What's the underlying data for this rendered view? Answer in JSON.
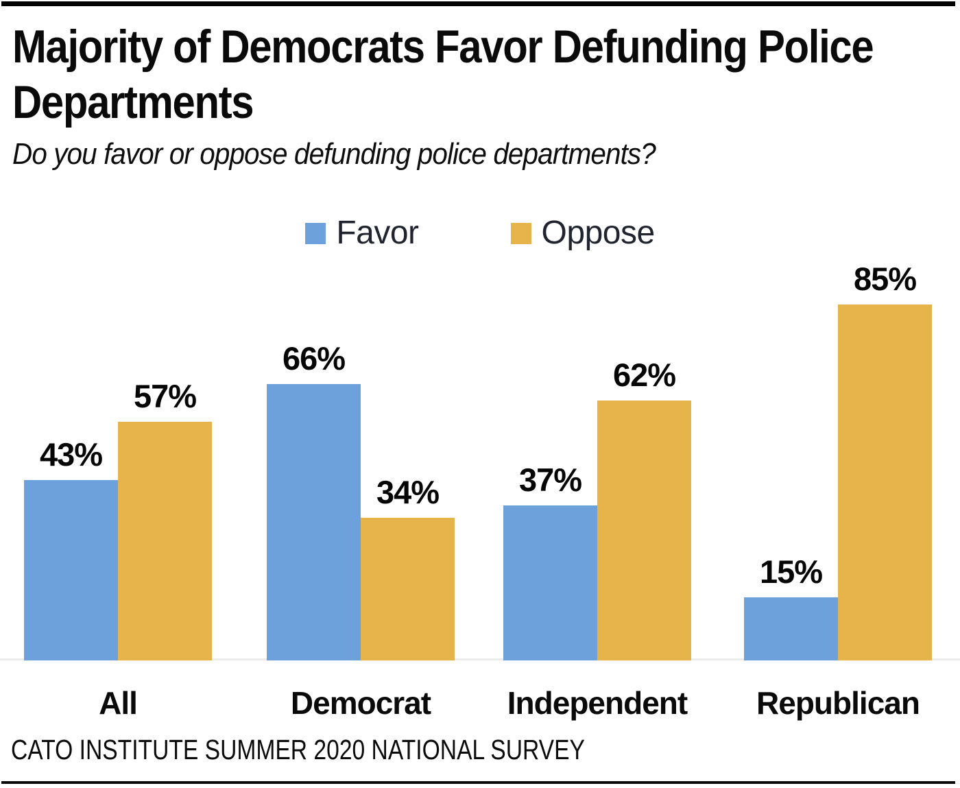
{
  "header": {
    "title": "Majority of Democrats Favor Defunding Police Departments",
    "title_lines": [
      "Majority of Democrats Favor Defunding Police",
      "Departments"
    ],
    "subtitle": "Do you favor or oppose defunding police departments?"
  },
  "legend": {
    "items": [
      {
        "label": "Favor",
        "color": "#6CA1DB"
      },
      {
        "label": "Oppose",
        "color": "#E7B44B"
      }
    ]
  },
  "footer": {
    "source": "CATO INSTITUTE SUMMER 2020 NATIONAL SURVEY"
  },
  "colors": {
    "favor_blue": "#6CA1DB",
    "oppose_orange": "#E7B44B",
    "axis_line": "#ECECEC",
    "text_dark": "#0a0a0a",
    "legend_text": "#20242F",
    "top_rule": "#000000",
    "bottom_rule": "#0b0b0b"
  },
  "chart_data": {
    "type": "bar",
    "title": "Majority of Democrats Favor Defunding Police Departments",
    "subtitle": "Do you favor or oppose defunding police departments?",
    "categories": [
      "All",
      "Democrat",
      "Independent",
      "Republican"
    ],
    "series": [
      {
        "name": "Favor",
        "color": "#6CA1DB",
        "values": [
          43,
          66,
          37,
          15
        ]
      },
      {
        "name": "Oppose",
        "color": "#E7B44B",
        "values": [
          57,
          34,
          62,
          85
        ]
      }
    ],
    "value_suffix": "%",
    "data_labels": true,
    "xlabel": "",
    "ylabel": "",
    "ylim": [
      0,
      100
    ],
    "grid": false,
    "legend_position": "top-center",
    "source_note": "CATO INSTITUTE SUMMER 2020 NATIONAL SURVEY"
  }
}
